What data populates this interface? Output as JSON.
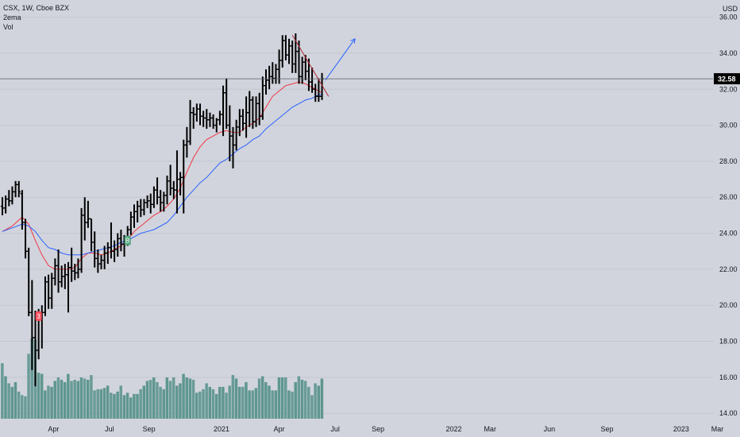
{
  "legend": {
    "symbol_line": "CSX, 1W, Cboe BZX",
    "indicator_1": "2ema",
    "indicator_2": "Vol"
  },
  "chart_data": {
    "type": "bar",
    "currency": "USD",
    "ylim": [
      13.7,
      36.6
    ],
    "yticks": [
      "36.00",
      "34.00",
      "32.00",
      "30.00",
      "28.00",
      "26.00",
      "24.00",
      "22.00",
      "20.00",
      "18.00",
      "16.00",
      "14.00"
    ],
    "last_price": "32.58",
    "x_labels": [
      {
        "label": "Apr",
        "bar": 15.5
      },
      {
        "label": "Jul",
        "bar": 32.5
      },
      {
        "label": "Sep",
        "bar": 44.5
      },
      {
        "label": "2021",
        "bar": 66.5
      },
      {
        "label": "Apr",
        "bar": 84
      },
      {
        "label": "Jul",
        "bar": 101
      },
      {
        "label": "Sep",
        "bar": 114
      },
      {
        "label": "2022",
        "bar": 137
      },
      {
        "label": "Mar",
        "bar": 148
      },
      {
        "label": "Jun",
        "bar": 166
      },
      {
        "label": "Sep",
        "bar": 183.5
      },
      {
        "label": "2023",
        "bar": 206
      },
      {
        "label": "Mar",
        "bar": 217
      }
    ],
    "ohlc": [
      [
        25.5,
        26.0,
        25.0,
        25.4
      ],
      [
        25.4,
        26.1,
        25.1,
        25.9
      ],
      [
        25.9,
        26.4,
        25.5,
        25.8
      ],
      [
        25.8,
        26.6,
        25.6,
        26.3
      ],
      [
        26.3,
        26.9,
        26.0,
        26.7
      ],
      [
        26.7,
        26.9,
        26.0,
        26.3
      ],
      [
        26.2,
        26.4,
        24.2,
        24.6
      ],
      [
        24.6,
        24.8,
        22.6,
        23.0
      ],
      [
        23.0,
        23.2,
        19.4,
        19.6
      ],
      [
        19.6,
        21.4,
        16.4,
        18.2
      ],
      [
        18.2,
        19.7,
        15.5,
        17.5
      ],
      [
        17.5,
        19.8,
        17.0,
        19.4
      ],
      [
        19.4,
        20.0,
        17.6,
        19.6
      ],
      [
        19.6,
        21.6,
        19.4,
        21.3
      ],
      [
        21.3,
        21.7,
        19.8,
        20.4
      ],
      [
        20.4,
        21.8,
        19.8,
        21.5
      ],
      [
        21.5,
        22.6,
        21.1,
        22.2
      ],
      [
        22.2,
        23.1,
        20.7,
        21.3
      ],
      [
        21.3,
        22.2,
        21.0,
        21.6
      ],
      [
        21.6,
        22.3,
        20.9,
        21.7
      ],
      [
        21.7,
        22.4,
        19.6,
        22.1
      ],
      [
        22.1,
        23.2,
        21.3,
        21.9
      ],
      [
        21.9,
        22.3,
        21.4,
        21.8
      ],
      [
        21.8,
        22.6,
        21.5,
        22.0
      ],
      [
        22.0,
        25.4,
        21.8,
        25.0
      ],
      [
        25.0,
        26.0,
        23.6,
        24.6
      ],
      [
        24.6,
        25.8,
        24.3,
        24.8
      ],
      [
        24.8,
        24.8,
        23.0,
        23.5
      ],
      [
        23.5,
        24.1,
        22.1,
        22.6
      ],
      [
        22.6,
        23.1,
        21.8,
        22.3
      ],
      [
        22.3,
        22.8,
        22.0,
        22.5
      ],
      [
        22.5,
        23.3,
        22.0,
        22.9
      ],
      [
        22.9,
        23.5,
        22.3,
        23.2
      ],
      [
        23.2,
        24.6,
        22.6,
        23.0
      ],
      [
        23.0,
        23.6,
        22.4,
        23.1
      ],
      [
        23.1,
        24.0,
        22.7,
        23.7
      ],
      [
        23.7,
        24.2,
        23.0,
        23.4
      ],
      [
        23.4,
        23.9,
        22.7,
        23.5
      ],
      [
        23.5,
        24.4,
        23.3,
        24.2
      ],
      [
        24.2,
        25.2,
        23.9,
        24.9
      ],
      [
        24.9,
        25.6,
        24.3,
        25.2
      ],
      [
        25.2,
        25.8,
        24.6,
        25.5
      ],
      [
        25.5,
        25.9,
        24.9,
        25.3
      ],
      [
        25.3,
        25.9,
        25.0,
        25.7
      ],
      [
        25.7,
        26.1,
        25.4,
        25.8
      ],
      [
        25.8,
        26.2,
        25.1,
        25.6
      ],
      [
        25.6,
        26.6,
        25.4,
        26.4
      ],
      [
        26.4,
        27.1,
        25.6,
        26.0
      ],
      [
        26.0,
        26.4,
        25.2,
        25.7
      ],
      [
        25.7,
        26.3,
        25.2,
        26.1
      ],
      [
        26.1,
        27.2,
        25.6,
        26.9
      ],
      [
        26.9,
        27.8,
        26.1,
        26.5
      ],
      [
        26.5,
        26.9,
        25.9,
        26.4
      ],
      [
        26.4,
        28.6,
        25.1,
        27.0
      ],
      [
        27.0,
        27.4,
        26.1,
        27.1
      ],
      [
        27.1,
        29.2,
        25.1,
        28.9
      ],
      [
        28.9,
        29.9,
        28.2,
        29.1
      ],
      [
        29.1,
        31.4,
        28.9,
        30.7
      ],
      [
        30.7,
        31.0,
        29.8,
        30.6
      ],
      [
        30.6,
        31.2,
        30.2,
        30.9
      ],
      [
        30.9,
        31.2,
        30.0,
        30.5
      ],
      [
        30.5,
        30.8,
        29.9,
        30.4
      ],
      [
        30.4,
        30.9,
        29.8,
        30.3
      ],
      [
        30.3,
        30.7,
        29.9,
        30.4
      ],
      [
        30.4,
        30.6,
        29.8,
        30.0
      ],
      [
        30.0,
        30.4,
        29.6,
        30.3
      ],
      [
        30.3,
        30.8,
        30.0,
        30.6
      ],
      [
        30.6,
        32.2,
        29.4,
        31.8
      ],
      [
        31.8,
        32.6,
        29.8,
        30.0
      ],
      [
        30.0,
        31.1,
        28.0,
        29.4
      ],
      [
        29.4,
        29.9,
        27.6,
        28.9
      ],
      [
        28.9,
        30.3,
        28.6,
        29.9
      ],
      [
        29.9,
        30.9,
        29.4,
        30.5
      ],
      [
        30.5,
        30.9,
        29.7,
        30.1
      ],
      [
        30.1,
        31.6,
        29.3,
        30.7
      ],
      [
        30.7,
        31.9,
        29.9,
        31.4
      ],
      [
        31.4,
        31.6,
        29.8,
        30.2
      ],
      [
        30.2,
        31.6,
        29.9,
        31.2
      ],
      [
        31.2,
        31.8,
        30.0,
        30.5
      ],
      [
        30.5,
        32.7,
        30.3,
        32.2
      ],
      [
        32.2,
        33.1,
        31.7,
        32.5
      ],
      [
        32.5,
        33.3,
        32.0,
        32.7
      ],
      [
        32.7,
        33.5,
        32.3,
        32.6
      ],
      [
        32.6,
        33.4,
        32.3,
        33.1
      ],
      [
        33.1,
        34.2,
        32.3,
        33.6
      ],
      [
        33.6,
        35.0,
        33.2,
        34.7
      ],
      [
        34.7,
        35.0,
        33.6,
        33.9
      ],
      [
        33.9,
        34.8,
        33.4,
        34.4
      ],
      [
        34.4,
        34.7,
        32.9,
        33.4
      ],
      [
        33.4,
        35.1,
        32.9,
        34.1
      ],
      [
        34.1,
        34.7,
        32.3,
        32.7
      ],
      [
        32.7,
        33.8,
        32.3,
        33.5
      ],
      [
        33.5,
        33.9,
        32.5,
        33.0
      ],
      [
        33.0,
        33.7,
        31.9,
        32.4
      ],
      [
        32.4,
        33.2,
        31.8,
        32.0
      ],
      [
        32.0,
        32.3,
        31.3,
        31.6
      ],
      [
        31.6,
        32.6,
        31.3,
        31.6
      ],
      [
        31.6,
        32.9,
        31.4,
        32.58
      ]
    ],
    "volume": [
      47,
      36,
      30,
      27,
      31,
      23,
      20,
      19,
      55,
      68,
      67,
      39,
      38,
      24,
      28,
      27,
      32,
      35,
      33,
      31,
      38,
      32,
      33,
      32,
      35,
      34,
      33,
      37,
      24,
      25,
      25,
      26,
      28,
      22,
      21,
      23,
      28,
      20,
      22,
      18,
      21,
      21,
      25,
      28,
      32,
      33,
      35,
      31,
      27,
      25,
      35,
      32,
      35,
      28,
      30,
      38,
      35,
      34,
      33,
      22,
      23,
      25,
      30,
      27,
      25,
      21,
      27,
      27,
      22,
      28,
      37,
      34,
      27,
      27,
      31,
      24,
      24,
      26,
      34,
      36,
      31,
      28,
      24,
      24,
      35,
      35,
      35,
      24,
      23,
      31,
      36,
      33,
      32,
      27,
      20,
      30,
      28,
      34
    ],
    "ema_fast": {
      "color": "#f23645",
      "points": [
        [
          0,
          24.1
        ],
        [
          3,
          24.4
        ],
        [
          6,
          24.9
        ],
        [
          8,
          24.5
        ],
        [
          10,
          23.6
        ],
        [
          12,
          22.8
        ],
        [
          14,
          22.2
        ],
        [
          16,
          22.0
        ],
        [
          18,
          22.0
        ],
        [
          20,
          22.0
        ],
        [
          22,
          22.1
        ],
        [
          24,
          22.6
        ],
        [
          26,
          22.9
        ],
        [
          28,
          22.9
        ],
        [
          30,
          22.8
        ],
        [
          32,
          22.9
        ],
        [
          34,
          23.1
        ],
        [
          36,
          23.3
        ],
        [
          38,
          23.6
        ],
        [
          40,
          24.1
        ],
        [
          42,
          24.4
        ],
        [
          44,
          24.7
        ],
        [
          46,
          25.0
        ],
        [
          48,
          25.2
        ],
        [
          50,
          25.5
        ],
        [
          52,
          25.9
        ],
        [
          54,
          26.5
        ],
        [
          56,
          27.4
        ],
        [
          58,
          28.2
        ],
        [
          60,
          28.8
        ],
        [
          62,
          29.2
        ],
        [
          64,
          29.4
        ],
        [
          66,
          29.6
        ],
        [
          68,
          29.7
        ],
        [
          70,
          29.6
        ],
        [
          72,
          29.6
        ],
        [
          74,
          29.9
        ],
        [
          76,
          30.1
        ],
        [
          78,
          30.4
        ],
        [
          80,
          31.0
        ],
        [
          82,
          31.6
        ],
        [
          84,
          31.9
        ],
        [
          86,
          32.2
        ],
        [
          88,
          32.3
        ],
        [
          90,
          32.4
        ],
        [
          92,
          32.3
        ],
        [
          94,
          32.1
        ],
        [
          96,
          31.9
        ],
        [
          97,
          31.8
        ]
      ]
    },
    "ema_slow": {
      "color": "#2962ff",
      "points": [
        [
          0,
          24.1
        ],
        [
          3,
          24.3
        ],
        [
          6,
          24.5
        ],
        [
          8,
          24.4
        ],
        [
          10,
          24.1
        ],
        [
          12,
          23.6
        ],
        [
          14,
          23.2
        ],
        [
          16,
          23.1
        ],
        [
          18,
          22.9
        ],
        [
          20,
          22.8
        ],
        [
          22,
          22.8
        ],
        [
          24,
          22.8
        ],
        [
          26,
          22.9
        ],
        [
          28,
          23.0
        ],
        [
          30,
          23.1
        ],
        [
          32,
          23.2
        ],
        [
          34,
          23.3
        ],
        [
          36,
          23.5
        ],
        [
          38,
          23.6
        ],
        [
          40,
          23.8
        ],
        [
          42,
          24.0
        ],
        [
          44,
          24.1
        ],
        [
          46,
          24.2
        ],
        [
          48,
          24.4
        ],
        [
          50,
          24.6
        ],
        [
          52,
          25.0
        ],
        [
          54,
          25.5
        ],
        [
          56,
          26.0
        ],
        [
          58,
          26.4
        ],
        [
          60,
          26.8
        ],
        [
          62,
          27.1
        ],
        [
          64,
          27.5
        ],
        [
          66,
          27.9
        ],
        [
          68,
          28.1
        ],
        [
          70,
          28.4
        ],
        [
          72,
          28.7
        ],
        [
          74,
          28.9
        ],
        [
          76,
          29.2
        ],
        [
          78,
          29.4
        ],
        [
          80,
          29.8
        ],
        [
          82,
          30.1
        ],
        [
          84,
          30.4
        ],
        [
          86,
          30.7
        ],
        [
          88,
          31.0
        ],
        [
          90,
          31.2
        ],
        [
          92,
          31.4
        ],
        [
          94,
          31.5
        ],
        [
          96,
          31.7
        ],
        [
          97,
          31.7
        ]
      ]
    },
    "trendline": {
      "color": "#b22833",
      "from": [
        88,
        35.0
      ],
      "to": [
        99,
        31.6
      ]
    },
    "arrow": {
      "color": "#2962ff",
      "from": [
        98,
        32.5
      ],
      "to": [
        107,
        34.8
      ]
    },
    "markers": [
      {
        "label": "3",
        "bar": 11,
        "price": 19.4,
        "color": "#f7525f"
      },
      {
        "label": "B",
        "bar": 38,
        "price": 23.6,
        "color": "#56a67f"
      }
    ]
  }
}
